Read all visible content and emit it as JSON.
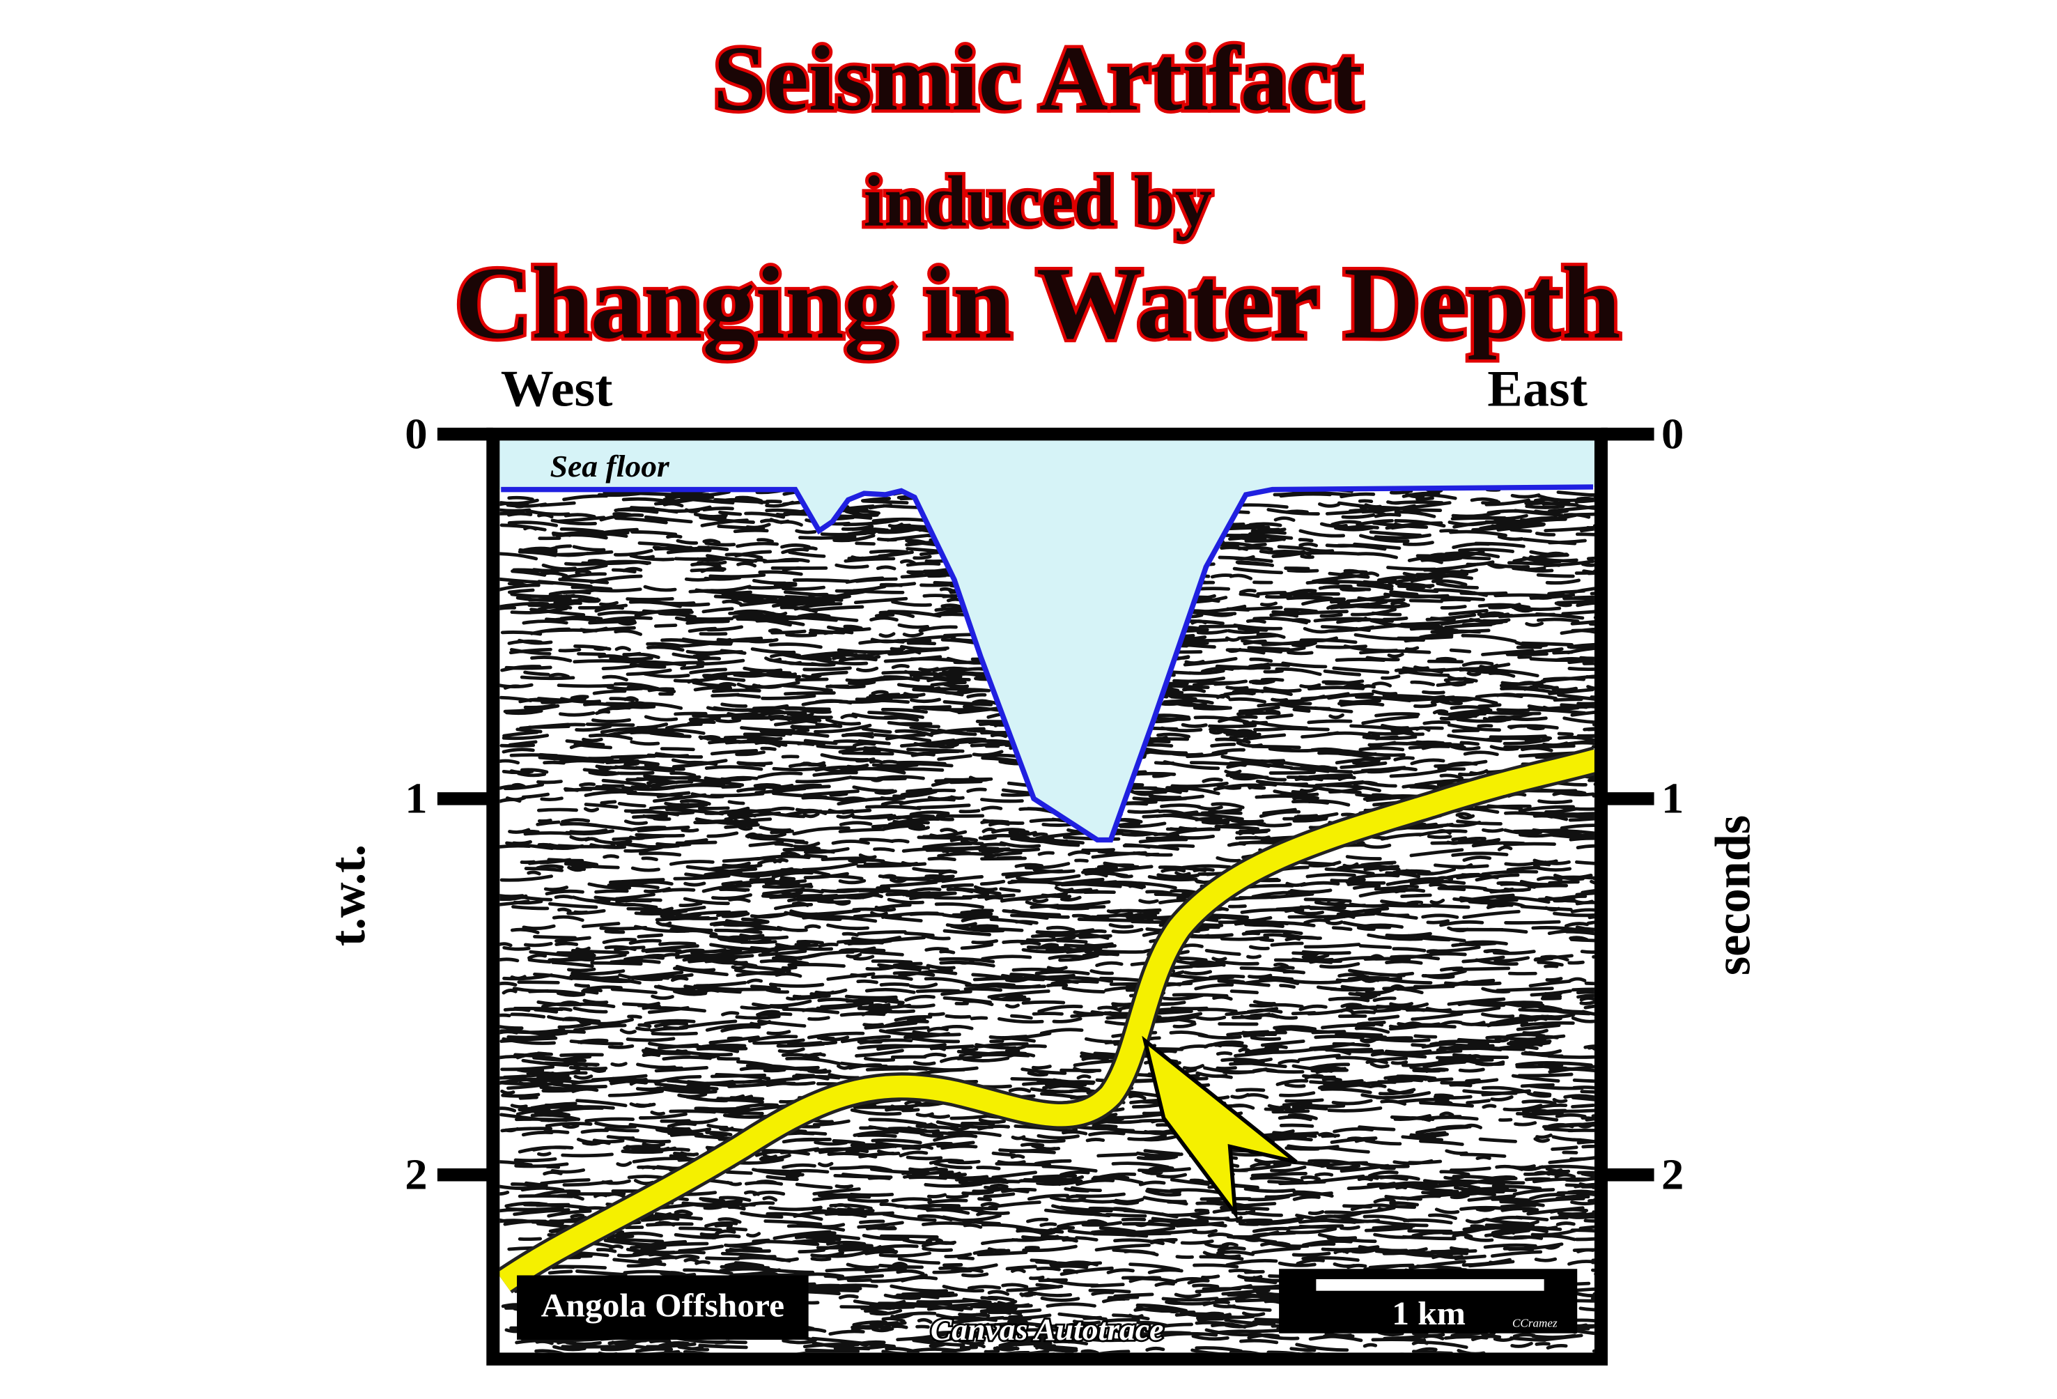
{
  "header": {
    "title": "Seismic Artifact",
    "subtitle": "induced by",
    "title2": "Changing in Water Depth"
  },
  "section": {
    "west": "West",
    "east": "East",
    "left_axis_label": "t.w.t.",
    "right_axis_label": "seconds",
    "left_ticks": [
      "0",
      "1",
      "2"
    ],
    "right_ticks": [
      "0",
      "1",
      "2"
    ],
    "sea_floor": "Sea floor",
    "location": "Angola Offshore",
    "scale": "1 km",
    "author": "CCramez",
    "credit": "Canvas Autotrace"
  }
}
